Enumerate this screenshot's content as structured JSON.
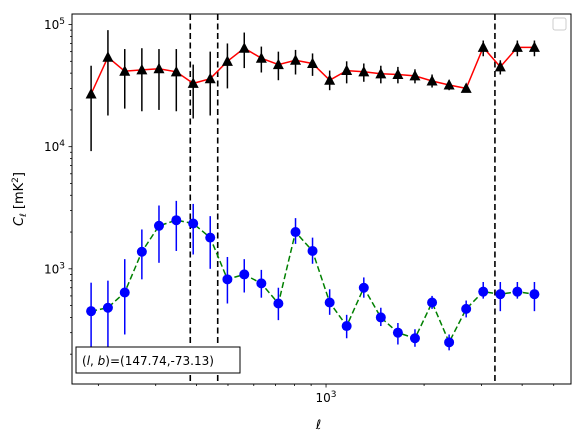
{
  "chart_data": {
    "type": "scatter",
    "title": "",
    "xlabel": "ℓ",
    "ylabel_main": "C",
    "ylabel_sub": "ℓ",
    "ylabel_unit": "[mK",
    "ylabel_unit_sup": "2",
    "ylabel_unit_close": "]",
    "x_scale": "log",
    "y_scale": "log",
    "xlim": [
      166,
      5650
    ],
    "ylim": [
      114,
      122000
    ],
    "x_ticks": [
      {
        "value": 1000,
        "base": "10",
        "exp": "3"
      }
    ],
    "y_ticks": [
      {
        "value": 1000,
        "base": "10",
        "exp": "3"
      },
      {
        "value": 10000,
        "base": "10",
        "exp": "4"
      },
      {
        "value": 100000,
        "base": "10",
        "exp": "5"
      }
    ],
    "vlines": [
      383,
      465,
      3300
    ],
    "annotation": "(l, b)=(147.74,-73.13)",
    "annotation_l": "l",
    "annotation_b": "b",
    "annotation_values": "=(147.74,-73.13)",
    "legend": "top-right, empty",
    "grid": false,
    "colors": {
      "upper_line": "#ff0000",
      "upper_marker": "#000000",
      "lower_line": "#008000",
      "lower_marker": "#0000ff",
      "vline": "#000000"
    },
    "series": [
      {
        "x": [
          190,
          214,
          241,
          272,
          307,
          347,
          391,
          441,
          498,
          561,
          633,
          714,
          806,
          909,
          1026,
          1157,
          1306,
          1473,
          1662,
          1875,
          2116,
          2387,
          2693,
          3038,
          3428,
          3867,
          4363
        ],
        "y": [
          27000,
          54000,
          41500,
          42500,
          43500,
          41000,
          33000,
          36000,
          50000,
          64000,
          53000,
          47000,
          51000,
          48000,
          35000,
          42000,
          41000,
          39500,
          39000,
          38000,
          34500,
          32000,
          30000,
          65000,
          45000,
          65000,
          65000
        ],
        "err_low": [
          9200,
          18000,
          20500,
          19500,
          20000,
          19500,
          17000,
          18000,
          30000,
          44000,
          40500,
          35000,
          39000,
          38000,
          29000,
          33000,
          34000,
          33000,
          33000,
          33000,
          30500,
          29000,
          28000,
          55000,
          39000,
          55000,
          55000
        ],
        "err_high": [
          46000,
          90000,
          63000,
          64000,
          63000,
          63000,
          47000,
          60000,
          70000,
          86000,
          66000,
          60000,
          62000,
          58000,
          42000,
          50000,
          48000,
          46000,
          45000,
          43000,
          39000,
          35000,
          32000,
          74000,
          51000,
          74000,
          74000
        ]
      },
      {
        "x": [
          190,
          214,
          241,
          272,
          307,
          347,
          391,
          441,
          498,
          561,
          633,
          714,
          806,
          909,
          1026,
          1157,
          1306,
          1473,
          1662,
          1875,
          2116,
          2387,
          2693,
          3038,
          3428,
          3867,
          4363
        ],
        "y": [
          450,
          480,
          640,
          1380,
          2250,
          2500,
          2350,
          1800,
          820,
          900,
          760,
          520,
          2000,
          1400,
          530,
          340,
          700,
          400,
          300,
          270,
          530,
          250,
          470,
          650,
          620,
          650,
          620
        ],
        "err_low": [
          210,
          230,
          290,
          820,
          1120,
          1400,
          1310,
          1000,
          520,
          640,
          580,
          380,
          1600,
          1100,
          420,
          270,
          580,
          340,
          240,
          230,
          470,
          215,
          400,
          570,
          450,
          570,
          450
        ],
        "err_high": [
          770,
          800,
          1200,
          2100,
          3300,
          3600,
          3400,
          2700,
          1250,
          1200,
          980,
          700,
          2600,
          1800,
          680,
          420,
          850,
          480,
          360,
          320,
          600,
          290,
          550,
          780,
          780,
          780,
          780
        ]
      }
    ]
  }
}
